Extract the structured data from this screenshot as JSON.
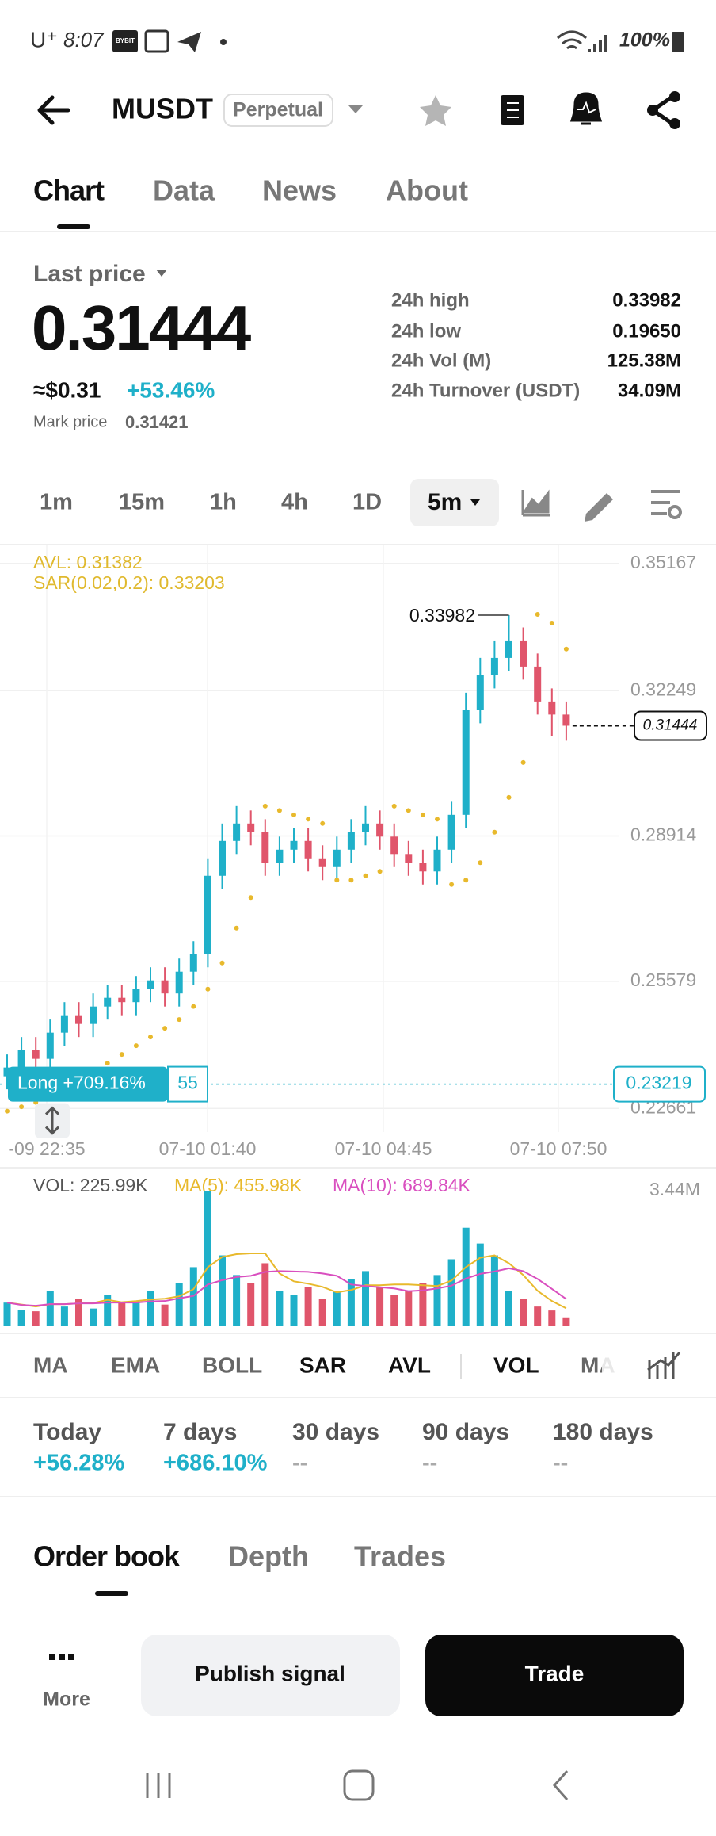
{
  "status_bar": {
    "carrier": "U⁺",
    "time": "8:07",
    "app_icon": "BYBIT",
    "battery": "100%"
  },
  "header": {
    "symbol": "MUSDT",
    "contract_type": "Perpetual"
  },
  "tabs": [
    "Chart",
    "Data",
    "News",
    "About"
  ],
  "price": {
    "label": "Last price",
    "last": "0.31444",
    "usd": "≈$0.31",
    "change": "+53.46%",
    "mark_label": "Mark price",
    "mark": "0.31421"
  },
  "stats": [
    {
      "label": "24h high",
      "value": "0.33982"
    },
    {
      "label": "24h low",
      "value": "0.19650"
    },
    {
      "label": "24h Vol (M)",
      "value": "125.38M"
    },
    {
      "label": "24h Turnover (USDT)",
      "value": "34.09M"
    }
  ],
  "intervals": [
    "1m",
    "15m",
    "1h",
    "4h",
    "1D",
    "5m"
  ],
  "chart_data": [
    {
      "type": "candlestick",
      "legend": [
        "AVL: 0.31382",
        "SAR(0.02,0.2): 0.33203"
      ],
      "up_color": "#1fb0c9",
      "down_color": "#e0556b",
      "sar_color": "#e8b92c",
      "open": [
        0.234,
        0.236,
        0.24,
        0.238,
        0.244,
        0.248,
        0.246,
        0.25,
        0.252,
        0.251,
        0.254,
        0.256,
        0.253,
        0.258,
        0.262,
        0.28,
        0.288,
        0.292,
        0.29,
        0.283,
        0.286,
        0.288,
        0.284,
        0.282,
        0.286,
        0.29,
        0.292,
        0.289,
        0.285,
        0.283,
        0.281,
        0.286,
        0.294,
        0.318,
        0.326,
        0.33,
        0.334,
        0.328,
        0.32,
        0.317
      ],
      "high": [
        0.239,
        0.243,
        0.243,
        0.247,
        0.251,
        0.251,
        0.253,
        0.255,
        0.255,
        0.257,
        0.259,
        0.259,
        0.261,
        0.265,
        0.284,
        0.292,
        0.296,
        0.295,
        0.293,
        0.289,
        0.291,
        0.291,
        0.287,
        0.289,
        0.293,
        0.296,
        0.295,
        0.292,
        0.288,
        0.286,
        0.289,
        0.297,
        0.322,
        0.33,
        0.334,
        0.33982,
        0.337,
        0.331,
        0.323,
        0.32
      ],
      "low": [
        0.231,
        0.233,
        0.235,
        0.235,
        0.241,
        0.243,
        0.243,
        0.247,
        0.248,
        0.248,
        0.251,
        0.25,
        0.25,
        0.255,
        0.259,
        0.277,
        0.285,
        0.287,
        0.28,
        0.28,
        0.283,
        0.281,
        0.279,
        0.279,
        0.283,
        0.287,
        0.286,
        0.282,
        0.28,
        0.278,
        0.278,
        0.283,
        0.291,
        0.315,
        0.323,
        0.327,
        0.325,
        0.317,
        0.312,
        0.311
      ],
      "close": [
        0.236,
        0.24,
        0.238,
        0.244,
        0.248,
        0.246,
        0.25,
        0.252,
        0.251,
        0.254,
        0.256,
        0.253,
        0.258,
        0.262,
        0.28,
        0.288,
        0.292,
        0.29,
        0.283,
        0.286,
        0.288,
        0.284,
        0.282,
        0.286,
        0.29,
        0.292,
        0.289,
        0.285,
        0.283,
        0.281,
        0.286,
        0.294,
        0.318,
        0.326,
        0.33,
        0.334,
        0.328,
        0.32,
        0.317,
        0.31444
      ],
      "sar": [
        0.226,
        0.227,
        0.228,
        0.229,
        0.231,
        0.233,
        0.235,
        0.237,
        0.239,
        0.241,
        0.243,
        0.245,
        0.247,
        0.25,
        0.254,
        0.26,
        0.268,
        0.275,
        0.296,
        0.295,
        0.294,
        0.293,
        0.292,
        0.279,
        0.279,
        0.28,
        0.281,
        0.296,
        0.295,
        0.294,
        0.293,
        0.278,
        0.279,
        0.283,
        0.29,
        0.298,
        0.306,
        0.34,
        0.338,
        0.33203
      ],
      "ylim": [
        0.2212,
        0.356
      ],
      "yticks": [
        0.35167,
        0.32249,
        0.28914,
        0.25579,
        0.22661
      ],
      "position": {
        "label": "Long +709.16%",
        "leverage": 55,
        "entry": 0.23219
      },
      "time_labels": [
        "-09 22:35",
        "07-10 01:40",
        "07-10 04:45",
        "07-10 07:50"
      ]
    },
    {
      "type": "bar",
      "legend": [
        "VOL: 225.99K",
        "MA(5): 455.98K",
        "MA(10): 689.84K"
      ],
      "ma5_color": "#e8b92c",
      "ma10_color": "#d94fbf",
      "values": [
        600000,
        420000,
        380000,
        900000,
        500000,
        700000,
        450000,
        800000,
        600000,
        650000,
        900000,
        550000,
        1100000,
        1500000,
        3440000,
        1800000,
        1300000,
        1100000,
        1600000,
        900000,
        800000,
        1000000,
        700000,
        900000,
        1200000,
        1400000,
        1000000,
        800000,
        900000,
        1100000,
        1300000,
        1700000,
        2500000,
        2100000,
        1800000,
        900000,
        700000,
        500000,
        400000,
        225990
      ],
      "ma5": [
        600000,
        550000,
        500000,
        560000,
        560000,
        580000,
        590000,
        670000,
        610000,
        640000,
        680000,
        700000,
        760000,
        940000,
        1500000,
        1760000,
        1830000,
        1850000,
        1850000,
        1340000,
        1140000,
        1080000,
        1000000,
        860000,
        920000,
        1040000,
        1040000,
        1060000,
        1060000,
        1040000,
        1020000,
        1160000,
        1500000,
        1740000,
        1800000,
        1600000,
        1300000,
        900000,
        640000,
        455980
      ],
      "ma10": [
        600000,
        540000,
        520000,
        560000,
        560000,
        580000,
        580000,
        600000,
        600000,
        600000,
        630000,
        640000,
        710000,
        770000,
        1060000,
        1170000,
        1250000,
        1280000,
        1380000,
        1400000,
        1390000,
        1380000,
        1340000,
        1280000,
        1060000,
        1020000,
        990000,
        960000,
        890000,
        910000,
        960000,
        1030000,
        1210000,
        1330000,
        1390000,
        1470000,
        1400000,
        1200000,
        950000,
        689840
      ],
      "ylim": [
        0,
        3440000
      ],
      "yticks": [
        {
          "value": 3440000,
          "label": "3.44M"
        }
      ]
    }
  ],
  "indicators": [
    "MA",
    "EMA",
    "BOLL",
    "SAR",
    "AVL",
    "VOL",
    "MA"
  ],
  "returns": [
    {
      "period": "Today",
      "value": "+56.28%"
    },
    {
      "period": "7 days",
      "value": "+686.10%"
    },
    {
      "period": "30 days",
      "value": "--"
    },
    {
      "period": "90 days",
      "value": "--"
    },
    {
      "period": "180 days",
      "value": "--"
    }
  ],
  "order_tabs": [
    "Order book",
    "Depth",
    "Trades"
  ],
  "bottom": {
    "more": "More",
    "publish": "Publish signal",
    "trade": "Trade"
  }
}
